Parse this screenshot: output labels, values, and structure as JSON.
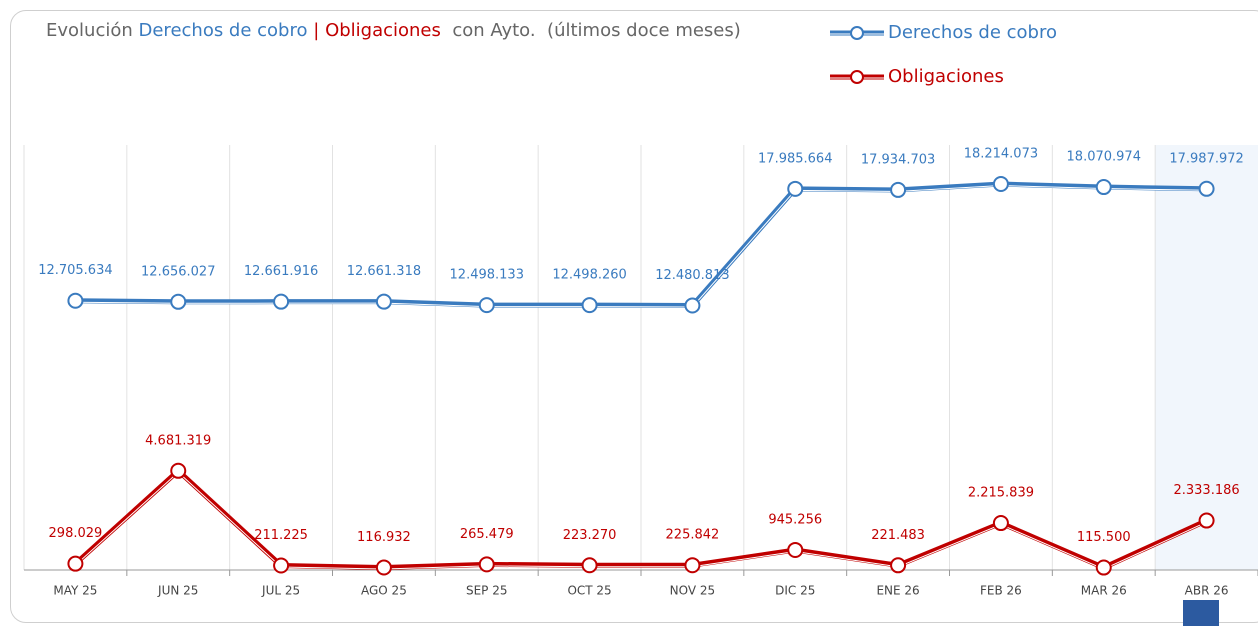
{
  "chart_data": {
    "type": "line",
    "title": [
      "Evolución",
      "Derechos de cobro",
      "|",
      "Obligaciones",
      "con Ayto.  (últimos doce meses)"
    ],
    "categories": [
      "MAY 25",
      "JUN 25",
      "JUL 25",
      "AGO 25",
      "SEP 25",
      "OCT 25",
      "NOV 25",
      "DIC 25",
      "ENE 26",
      "FEB 26",
      "MAR 26",
      "ABR 26"
    ],
    "series": [
      {
        "name": "Derechos de cobro",
        "color": "#3a7bbf",
        "values": [
          12705634,
          12656027,
          12661916,
          12661318,
          12498133,
          12498260,
          12480813,
          17985664,
          17934703,
          18214073,
          18070974,
          17987972
        ],
        "value_labels": [
          "12.705.634",
          "12.656.027",
          "12.661.916",
          "12.661.318",
          "12.498.133",
          "12.498.260",
          "12.480.813",
          "17.985.664",
          "17.934.703",
          "18.214.073",
          "18.070.974",
          "17.987.972"
        ]
      },
      {
        "name": "Obligaciones",
        "color": "#c00000",
        "values": [
          298029,
          4681319,
          211225,
          116932,
          265479,
          223270,
          225842,
          945256,
          221483,
          2215839,
          115500,
          2333186
        ],
        "value_labels": [
          "298.029",
          "4.681.319",
          "211.225",
          "116.932",
          "265.479",
          "223.270",
          "225.842",
          "945.256",
          "221.483",
          "2.215.839",
          "115.500",
          "2.333.186"
        ]
      }
    ]
  }
}
